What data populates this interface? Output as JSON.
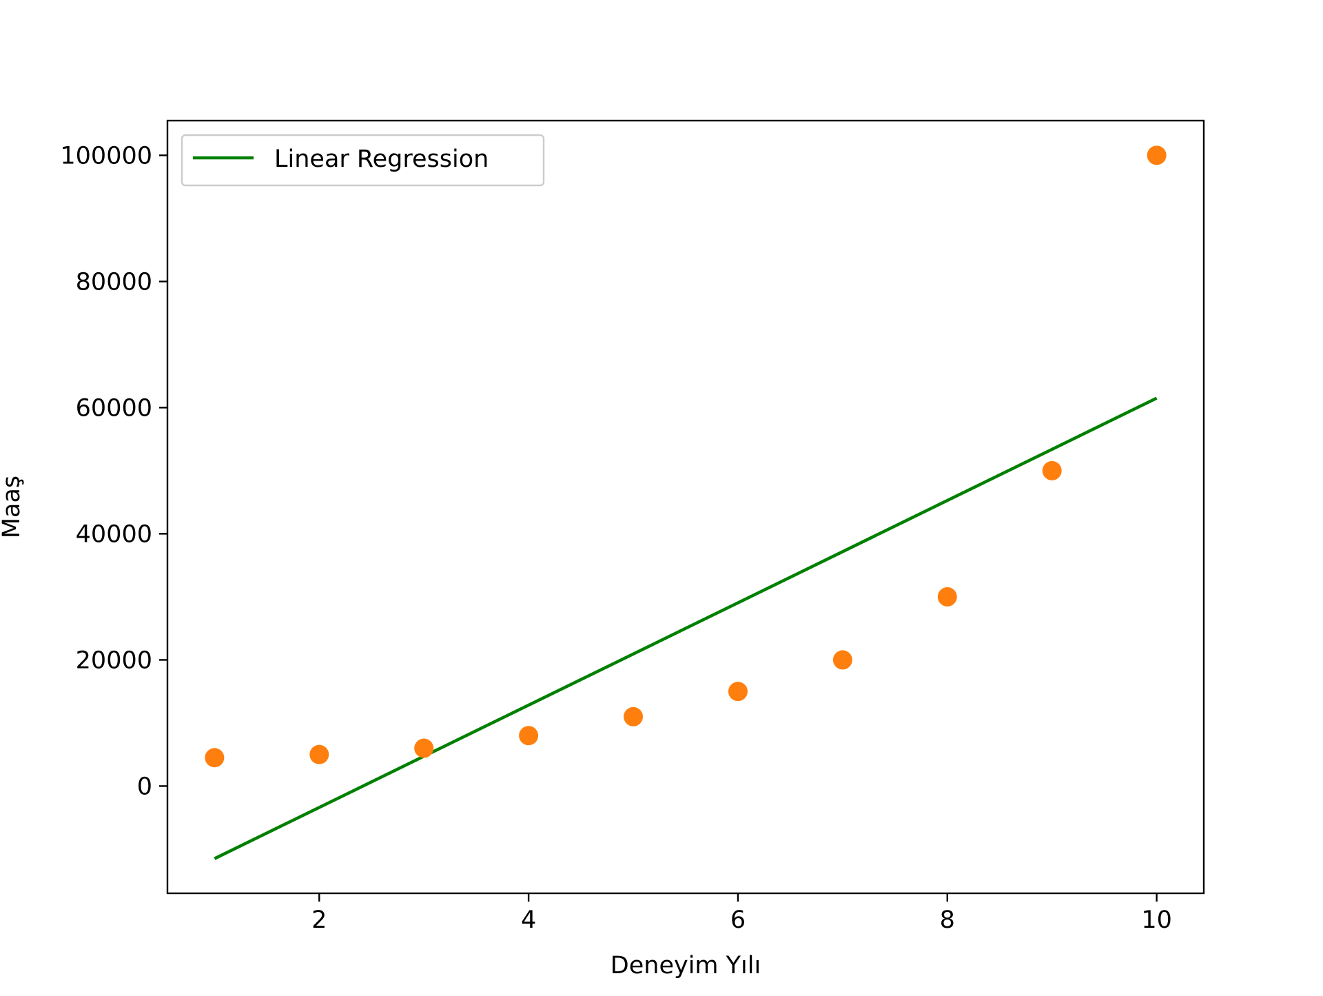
{
  "chart_data": {
    "type": "scatter",
    "title": "",
    "xlabel": "Deneyim Yılı",
    "ylabel": "Maaş",
    "xlim": [
      0.55,
      10.45
    ],
    "ylim": [
      -17000,
      105500
    ],
    "xticks": [
      2,
      4,
      6,
      8,
      10
    ],
    "yticks": [
      0,
      20000,
      40000,
      60000,
      80000,
      100000
    ],
    "grid": false,
    "legend": {
      "location": "top-left",
      "entries": [
        "Linear Regression"
      ]
    },
    "scatter_series": {
      "color": "#ff7f0e",
      "x": [
        1,
        2,
        3,
        4,
        5,
        6,
        7,
        8,
        9,
        10
      ],
      "y": [
        4500,
        5000,
        6000,
        8000,
        11000,
        15000,
        20000,
        30000,
        50000,
        100000
      ]
    },
    "line_series": {
      "name": "Linear Regression",
      "color": "#008000",
      "x": [
        1,
        10
      ],
      "y": [
        -11500,
        61500
      ]
    }
  }
}
